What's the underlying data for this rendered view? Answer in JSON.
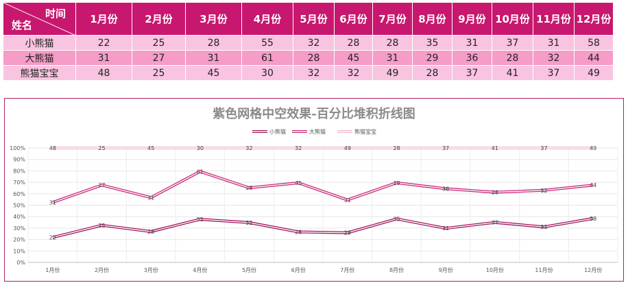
{
  "table": {
    "corner_top": "时间",
    "corner_bottom": "姓名",
    "months": [
      "1月份",
      "2月份",
      "3月份",
      "4月份",
      "5月份",
      "6月份",
      "7月份",
      "8月份",
      "9月份",
      "10月份",
      "11月份",
      "12月份"
    ],
    "rows": [
      {
        "name": "小熊猫",
        "values": [
          22,
          25,
          28,
          55,
          32,
          28,
          28,
          35,
          31,
          37,
          31,
          58
        ]
      },
      {
        "name": "大熊猫",
        "values": [
          31,
          27,
          31,
          61,
          28,
          45,
          31,
          29,
          36,
          28,
          32,
          44
        ]
      },
      {
        "name": "熊猫宝宝",
        "values": [
          48,
          25,
          45,
          30,
          32,
          32,
          49,
          28,
          37,
          41,
          37,
          49
        ]
      }
    ]
  },
  "colors": {
    "header": "#c8176e",
    "row_light": "#f9c4e0",
    "row_mid": "#f59cc8",
    "series": [
      "#a0175c",
      "#c8287a",
      "#f4b6d4"
    ]
  },
  "chart_data": {
    "type": "line",
    "title": "紫色网格中空效果-百分比堆积折线图",
    "stacking": "percent",
    "categories": [
      "1月份",
      "2月份",
      "3月份",
      "4月份",
      "5月份",
      "6月份",
      "7月份",
      "8月份",
      "9月份",
      "10月份",
      "11月份",
      "12月份"
    ],
    "series": [
      {
        "name": "小熊猫",
        "values": [
          22,
          25,
          28,
          55,
          32,
          28,
          28,
          35,
          31,
          37,
          31,
          58
        ]
      },
      {
        "name": "大熊猫",
        "values": [
          31,
          27,
          31,
          61,
          28,
          45,
          31,
          29,
          36,
          28,
          32,
          44
        ]
      },
      {
        "name": "熊猫宝宝",
        "values": [
          48,
          25,
          45,
          30,
          32,
          32,
          49,
          28,
          37,
          41,
          37,
          49
        ]
      }
    ],
    "ylim": [
      0,
      100
    ],
    "yticks": [
      "0%",
      "10%",
      "20%",
      "30%",
      "40%",
      "50%",
      "60%",
      "70%",
      "80%",
      "90%",
      "100%"
    ],
    "grid": true,
    "legend": "top"
  }
}
